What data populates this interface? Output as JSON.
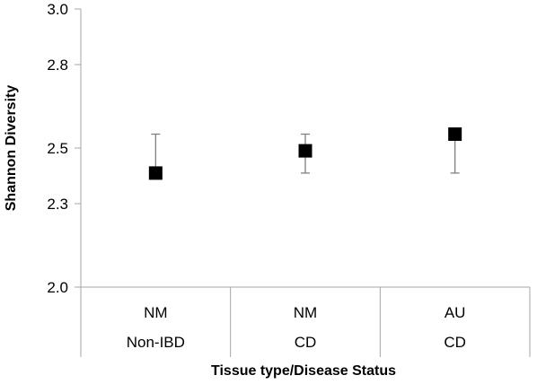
{
  "chart_data": {
    "type": "scatter",
    "title": "",
    "xlabel": "Tissue type/Disease Status",
    "ylabel": "Shannon Diversity",
    "ylim": [
      2.0,
      3.0
    ],
    "yticks": [
      3.0,
      2.8,
      2.5,
      2.3,
      2.0
    ],
    "ytick_labels": [
      "3.0",
      "2.8",
      "2.5",
      "2.3",
      "2.0"
    ],
    "grid": false,
    "legend": "none",
    "categories": [
      {
        "tissue": "NM",
        "status": "Non-IBD"
      },
      {
        "tissue": "NM",
        "status": "CD"
      },
      {
        "tissue": "AU",
        "status": "CD"
      }
    ],
    "series": [
      {
        "values": [
          2.41,
          2.49,
          2.55
        ],
        "error_low": [
          2.41,
          2.41,
          2.41
        ],
        "error_high": [
          2.55,
          2.55,
          2.55
        ]
      }
    ],
    "marker_color": "#000000",
    "axis_color": "#a6a6a6",
    "errorbar_color": "#808080"
  }
}
